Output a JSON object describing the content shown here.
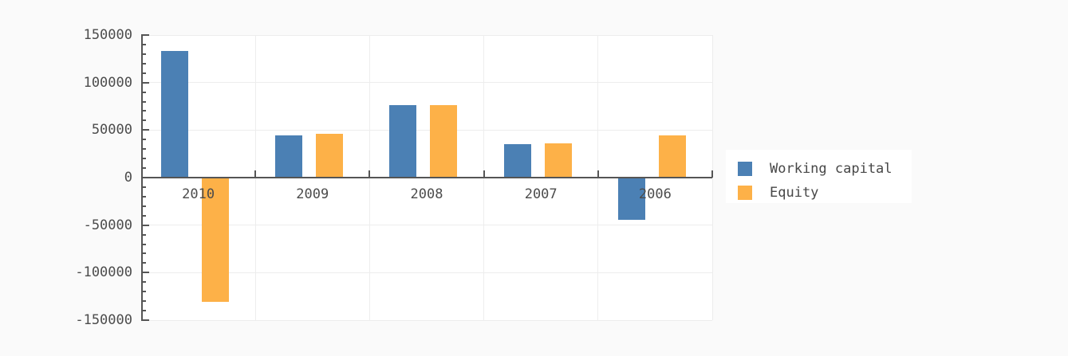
{
  "chart_data": {
    "type": "bar",
    "title": "",
    "xlabel": "",
    "ylabel": "",
    "categories": [
      "2010",
      "2009",
      "2008",
      "2007",
      "2006"
    ],
    "series": [
      {
        "name": "Working capital",
        "color": "#4b80b4",
        "values": [
          133000,
          44000,
          76000,
          35000,
          -44000
        ]
      },
      {
        "name": "Equity",
        "color": "#fdb148",
        "values": [
          -131000,
          46000,
          76500,
          36000,
          44000
        ]
      }
    ],
    "ylim": [
      -150000,
      150000
    ],
    "y_major_step": 50000,
    "y_minor_step": 10000,
    "y_tick_labels": [
      "150000",
      "100000",
      "50000",
      "0",
      "-50000",
      "-100000",
      "-150000"
    ],
    "grid": true,
    "legend_position": "right"
  },
  "colors": {
    "page_background": "#fafafa",
    "plot_background": "#ffffff",
    "legend_background": "#ffffff",
    "axis": "#555555",
    "gridline": "#ededed",
    "label_text": "#4c4c4c",
    "legend_text": "#474747"
  }
}
